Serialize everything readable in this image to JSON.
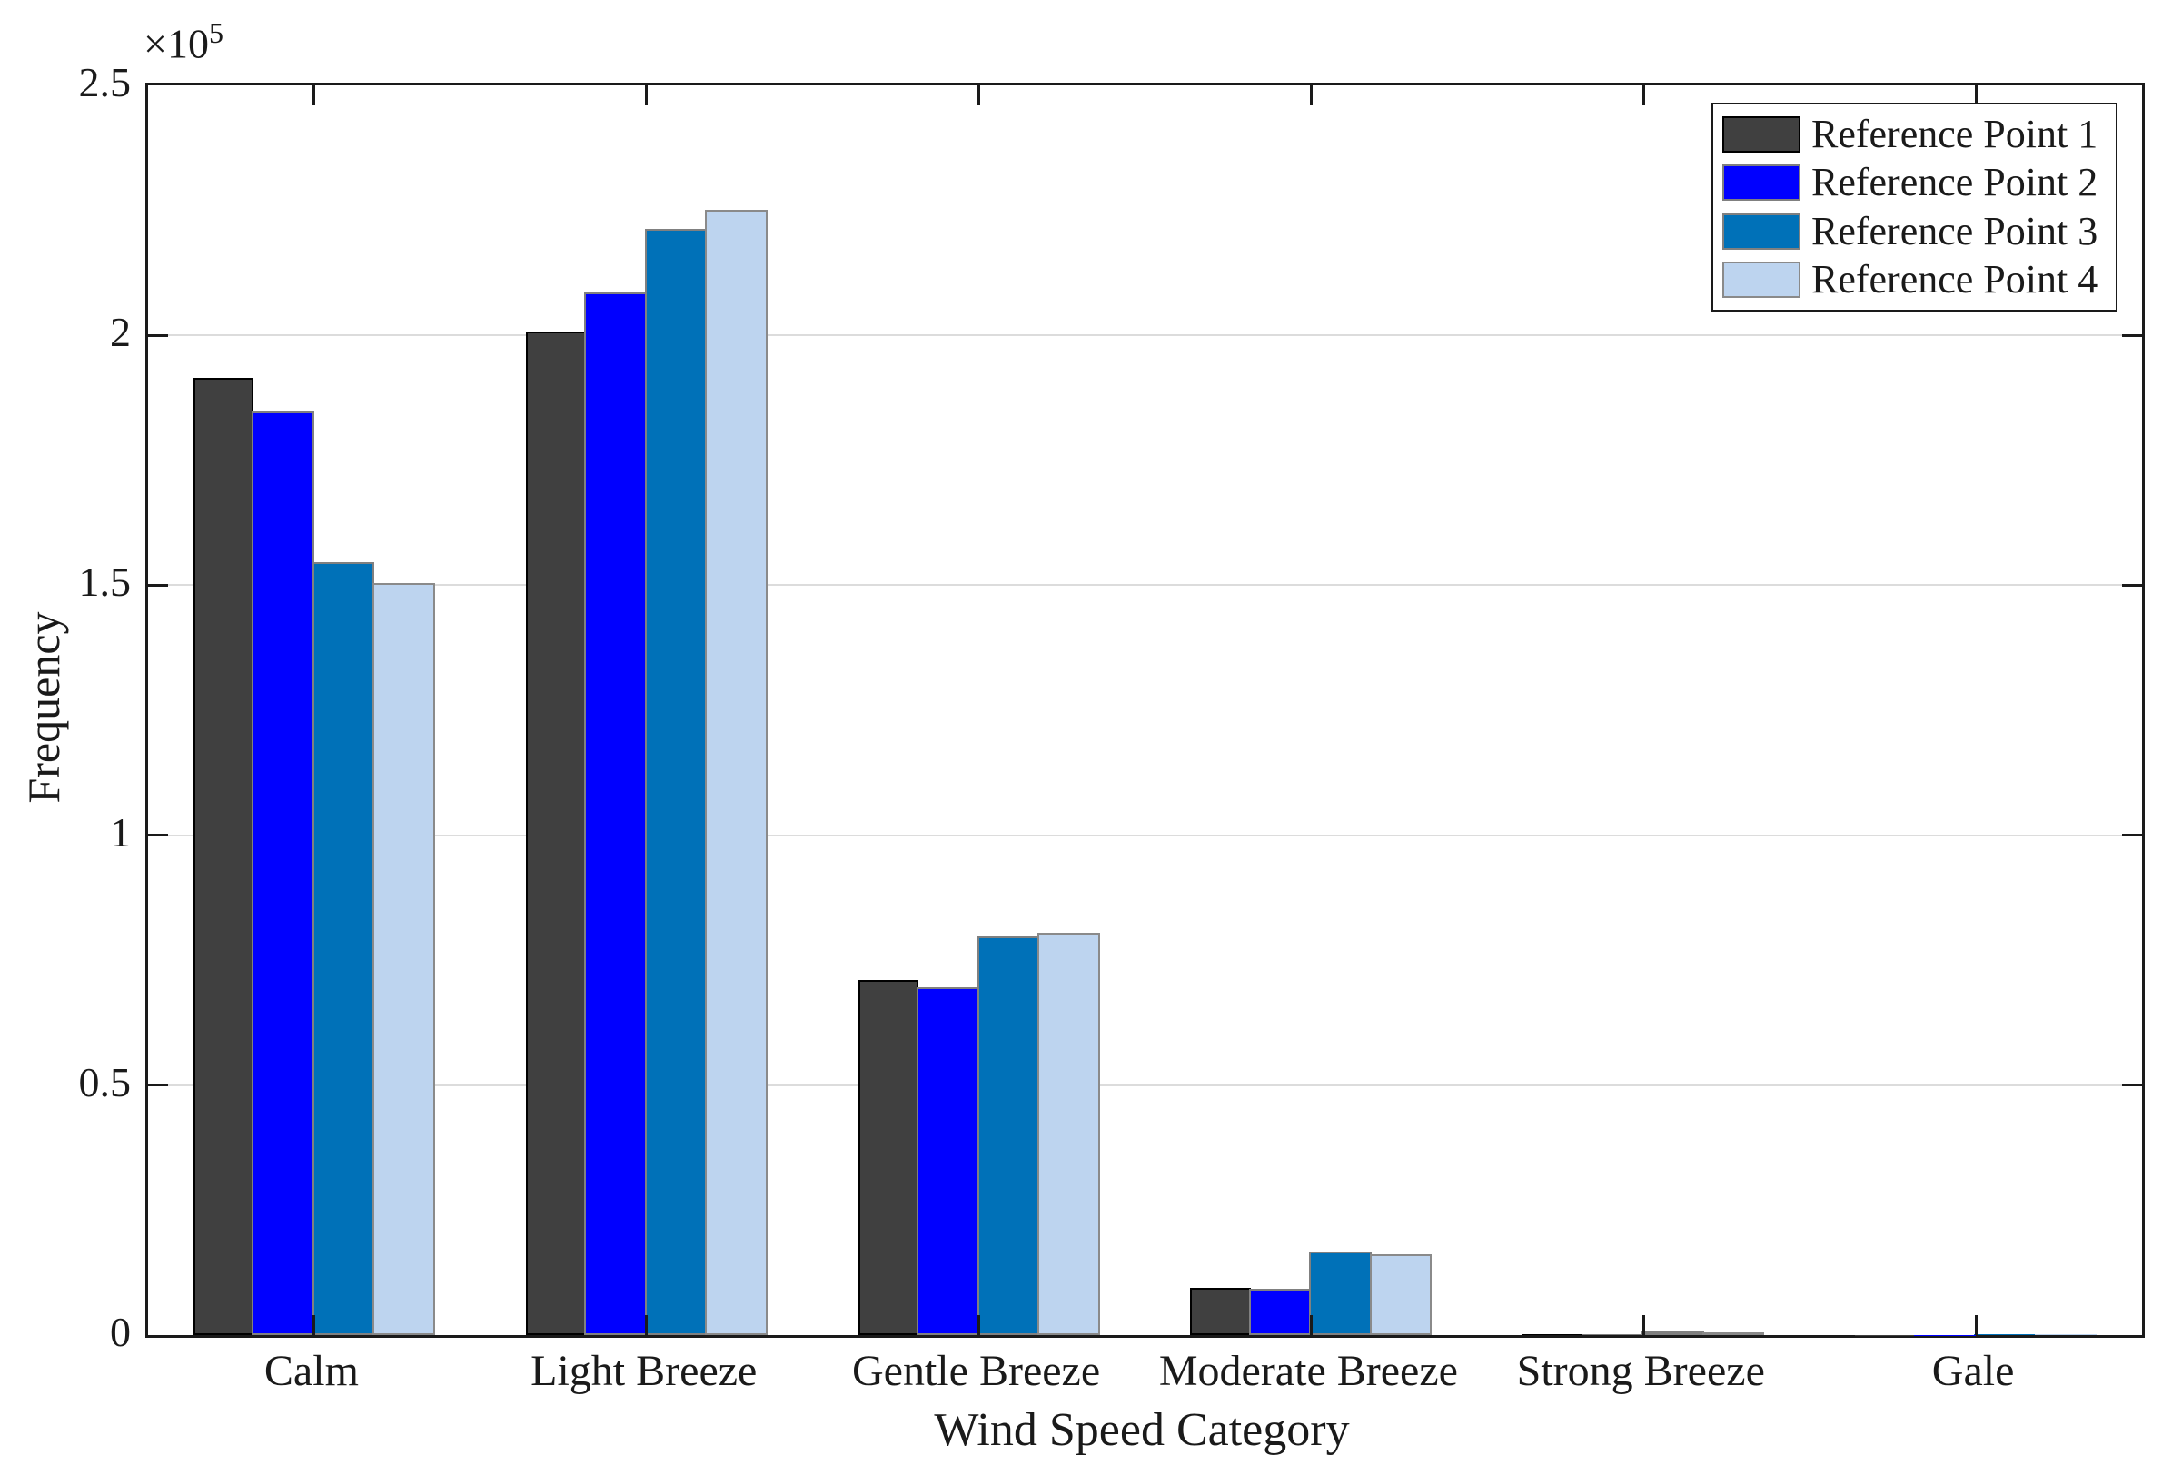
{
  "chart_data": {
    "type": "bar",
    "title": "",
    "xlabel": "Wind Speed Category",
    "ylabel": "Frequency",
    "y_multiplier": {
      "base": "×10",
      "exp": "5"
    },
    "categories": [
      "Calm",
      "Light Breeze",
      "Gentle Breeze",
      "Moderate Breeze",
      "Strong Breeze",
      "Gale"
    ],
    "series": [
      {
        "name": "Reference Point 1",
        "color": "#404040",
        "edge_color": "#000000",
        "values": [
          191500,
          200700,
          71000,
          9500,
          250,
          50
        ]
      },
      {
        "name": "Reference Point 2",
        "color": "#0000ff",
        "edge_color": "#808080",
        "values": [
          184700,
          208500,
          69500,
          9200,
          200,
          40
        ]
      },
      {
        "name": "Reference Point 3",
        "color": "#0071b8",
        "edge_color": "#808080",
        "values": [
          154600,
          221300,
          79700,
          16700,
          700,
          120
        ]
      },
      {
        "name": "Reference Point 4",
        "color": "#bdd4ef",
        "edge_color": "#8a8a8a",
        "values": [
          150500,
          225100,
          80500,
          16200,
          500,
          100
        ]
      }
    ],
    "ylim": [
      0,
      250000
    ],
    "ytick_values": [
      0,
      50000,
      100000,
      150000,
      200000,
      250000
    ],
    "ytick_labels": [
      "0",
      "0.5",
      "1",
      "1.5",
      "2",
      "2.5"
    ],
    "grid": "horizontal",
    "legend_position": "top-right",
    "axis_color": "#1a1a1a",
    "grid_color": "#dcdcdc"
  }
}
